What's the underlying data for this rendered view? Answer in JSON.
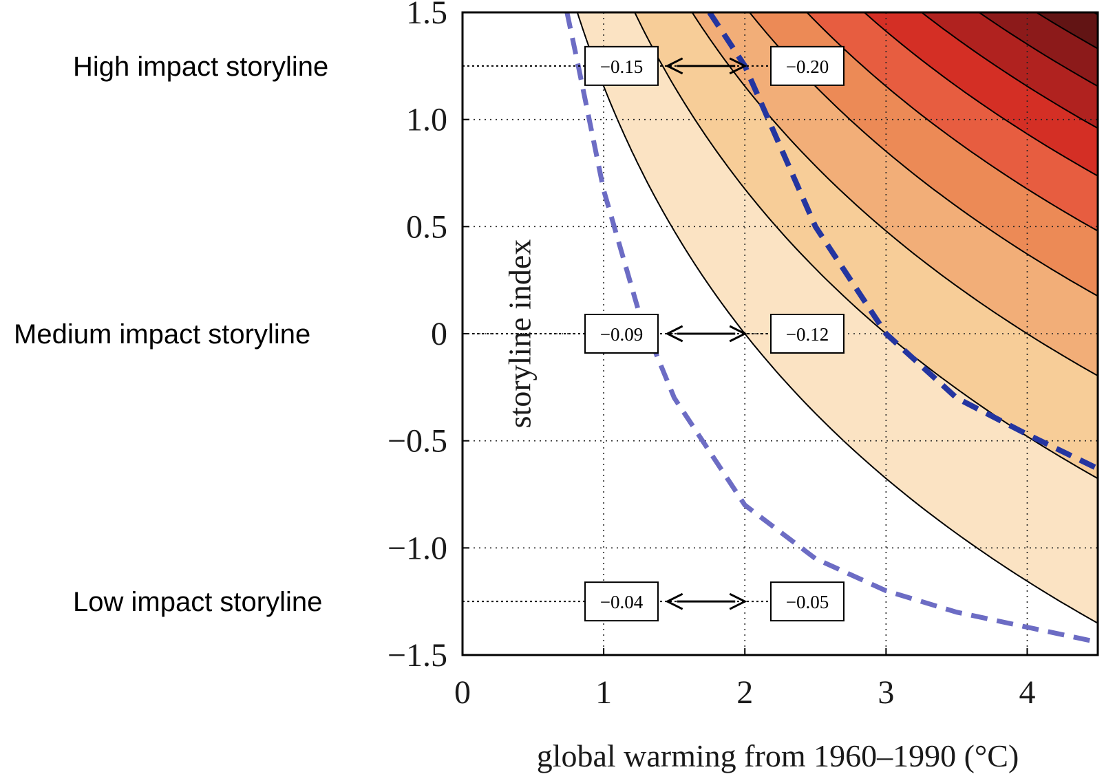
{
  "chart_data": {
    "type": "contour",
    "xlabel": "global warming from 1960–1990 (°C)",
    "ylabel": "storyline index",
    "xlim": [
      0,
      4.5
    ],
    "ylim": [
      -1.5,
      1.5
    ],
    "x_ticks": [
      "0",
      "1",
      "2",
      "3",
      "4"
    ],
    "y_ticks": [
      "−1.5",
      "−1.0",
      "−0.5",
      "0",
      "0.5",
      "1.0",
      "1.5"
    ],
    "grid": "dotted",
    "contour_levels": [
      -0.04,
      -0.06,
      -0.08,
      -0.1,
      -0.12,
      -0.14,
      -0.16,
      -0.18,
      -0.2,
      -0.22,
      -0.24,
      -0.26
    ],
    "fill_colors": [
      "#ffffff",
      "#fbe3c3",
      "#f7cd98",
      "#f2ae78",
      "#ec8a56",
      "#e75d40",
      "#d42f25",
      "#b0221f",
      "#8c1a1a",
      "#621414",
      "#3a1010",
      "#220c0c"
    ],
    "dashed_curves": [
      {
        "color": "#6c6cc4",
        "points": [
          [
            0.74,
            1.5
          ],
          [
            0.82,
            1.25
          ],
          [
            1.0,
            0.67
          ],
          [
            1.25,
            0.1
          ],
          [
            1.5,
            -0.3
          ],
          [
            2.0,
            -0.8
          ],
          [
            2.5,
            -1.05
          ],
          [
            3.0,
            -1.2
          ],
          [
            3.5,
            -1.3
          ],
          [
            4.0,
            -1.37
          ],
          [
            4.5,
            -1.44
          ]
        ]
      },
      {
        "color": "#2435a0",
        "points": [
          [
            1.75,
            1.5
          ],
          [
            2.0,
            1.25
          ],
          [
            2.5,
            0.5
          ],
          [
            3.0,
            0.0
          ],
          [
            3.5,
            -0.3
          ],
          [
            4.0,
            -0.47
          ],
          [
            4.5,
            -0.63
          ]
        ]
      }
    ],
    "storylines": [
      {
        "name": "High impact storyline",
        "y": 1.25,
        "left_value": "−0.15",
        "right_value": "−0.20"
      },
      {
        "name": "Medium impact storyline",
        "y": 0,
        "left_value": "−0.09",
        "right_value": "−0.12"
      },
      {
        "name": "Low impact storyline",
        "y": -1.25,
        "left_value": "−0.04",
        "right_value": "−0.05"
      }
    ],
    "arrow_from_x": 1.5,
    "arrow_to_x": 2.0
  }
}
